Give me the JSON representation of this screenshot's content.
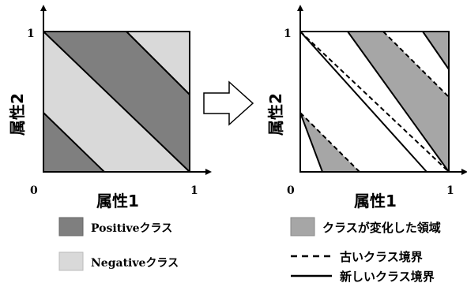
{
  "left_plot": {
    "x_axis_label": "属性1",
    "y_axis_label": "属性2",
    "x_tick_max": "1",
    "y_tick_max": "1",
    "origin_label": "0"
  },
  "right_plot": {
    "x_axis_label": "属性1",
    "y_axis_label": "属性2",
    "x_tick_max": "1",
    "y_tick_max": "1",
    "origin_label": "0"
  },
  "legend": {
    "positive_label": "Positiveクラス",
    "negative_label": "Negativeクラス",
    "changed_region_label": "クラスが変化した領域",
    "old_boundary_label": "古いクラス境界",
    "new_boundary_label": "新しいクラス境界"
  },
  "colors": {
    "positive": "#7f7f7f",
    "negative": "#d9d9d9",
    "changed": "#a6a6a6",
    "line": "#000000"
  }
}
